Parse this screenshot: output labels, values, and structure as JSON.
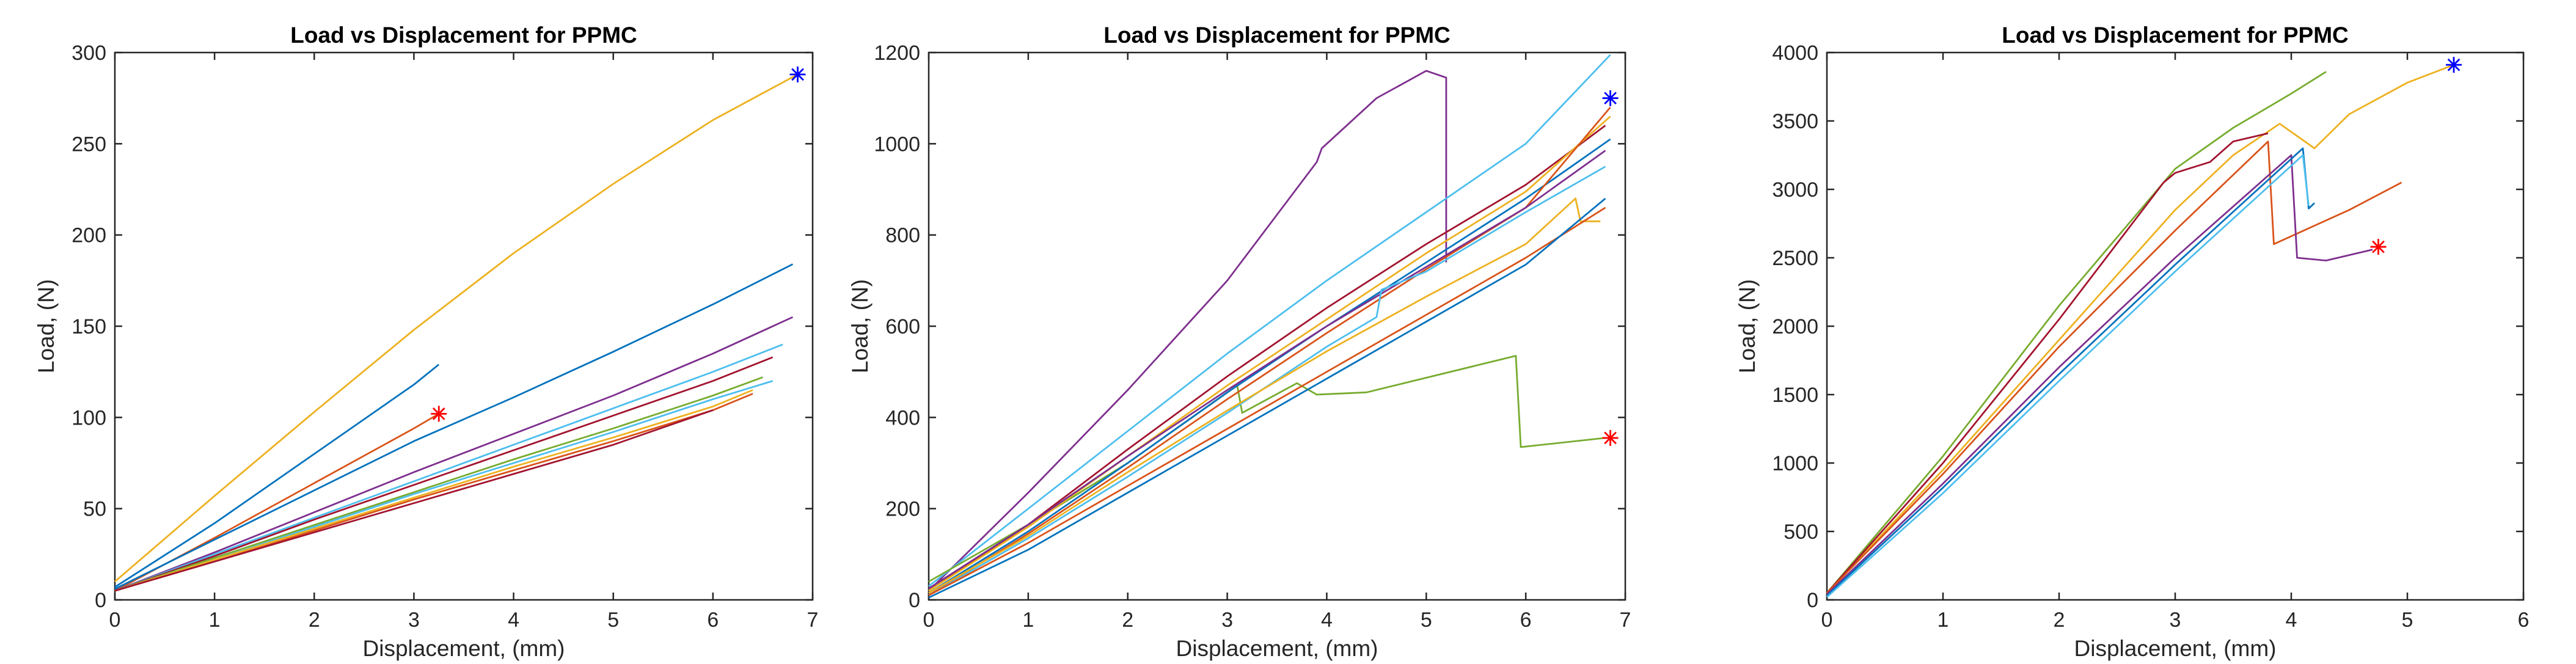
{
  "chart_data": [
    {
      "type": "line",
      "title": "Load vs Displacement for PPMC",
      "xlabel": "Displacement, (mm)",
      "ylabel": "Load, (N)",
      "xlim": [
        0,
        7
      ],
      "ylim": [
        0,
        300
      ],
      "xticks": [
        0,
        1,
        2,
        3,
        4,
        5,
        6,
        7
      ],
      "yticks": [
        0,
        50,
        100,
        150,
        200,
        250,
        300
      ],
      "grid": false,
      "markers": [
        {
          "x": 6.85,
          "y": 288,
          "color": "#0000ff"
        },
        {
          "x": 3.25,
          "y": 102,
          "color": "#ff0000"
        }
      ],
      "series": [
        {
          "color": "#EDB120",
          "x": [
            0,
            1,
            2,
            3,
            4,
            5,
            6,
            6.85
          ],
          "y": [
            10,
            57,
            103,
            148,
            190,
            228,
            263,
            288
          ]
        },
        {
          "color": "#0072BD",
          "x": [
            0,
            1,
            2,
            3,
            3.25
          ],
          "y": [
            7,
            42,
            80,
            118,
            129
          ]
        },
        {
          "color": "#D95319",
          "x": [
            0,
            1,
            2,
            3,
            3.25
          ],
          "y": [
            5,
            34,
            64,
            94,
            102
          ]
        },
        {
          "color": "#0072BD",
          "x": [
            0,
            1,
            2,
            3,
            4,
            5,
            6,
            6.8
          ],
          "y": [
            6,
            33,
            60,
            87,
            111,
            136,
            162,
            184
          ]
        },
        {
          "color": "#7E2F8E",
          "x": [
            0,
            1,
            2,
            3,
            4,
            5,
            6,
            6.8
          ],
          "y": [
            5,
            26,
            48,
            70,
            91,
            112,
            135,
            155
          ]
        },
        {
          "color": "#4DBEEE",
          "x": [
            0,
            1,
            2,
            3,
            4,
            5,
            6,
            6.7
          ],
          "y": [
            5,
            25,
            45,
            65,
            85,
            105,
            125,
            140
          ]
        },
        {
          "color": "#A2142F",
          "x": [
            0,
            1,
            2,
            3,
            4,
            5,
            6,
            6.6
          ],
          "y": [
            5,
            24,
            44,
            63,
            82,
            101,
            120,
            133
          ]
        },
        {
          "color": "#77AC30",
          "x": [
            0,
            1,
            2,
            3,
            4,
            5,
            6,
            6.5
          ],
          "y": [
            5,
            23,
            41,
            59,
            77,
            94,
            112,
            122
          ]
        },
        {
          "color": "#4DBEEE",
          "x": [
            0,
            1,
            2,
            3,
            4,
            5,
            6,
            6.6
          ],
          "y": [
            5,
            22,
            40,
            58,
            75,
            92,
            110,
            120
          ]
        },
        {
          "color": "#EDB120",
          "x": [
            0,
            1,
            2,
            3,
            4,
            5,
            6,
            6.4
          ],
          "y": [
            5,
            22,
            39,
            56,
            73,
            89,
            106,
            115
          ]
        },
        {
          "color": "#D95319",
          "x": [
            0,
            1,
            2,
            3,
            4,
            5,
            6,
            6.4
          ],
          "y": [
            5,
            21,
            38,
            55,
            71,
            87,
            104,
            113
          ]
        },
        {
          "color": "#A2142F",
          "x": [
            0,
            1,
            2,
            3,
            4,
            5,
            6
          ],
          "y": [
            5,
            21,
            37,
            53,
            69,
            85,
            104
          ]
        }
      ]
    },
    {
      "type": "line",
      "title": "Load vs Displacement for PPMC",
      "xlabel": "Displacement, (mm)",
      "ylabel": "Load, (N)",
      "xlim": [
        0,
        7
      ],
      "ylim": [
        0,
        1200
      ],
      "xticks": [
        0,
        1,
        2,
        3,
        4,
        5,
        6,
        7
      ],
      "yticks": [
        0,
        200,
        400,
        600,
        800,
        1000,
        1200
      ],
      "grid": false,
      "markers": [
        {
          "x": 6.85,
          "y": 1100,
          "color": "#0000ff"
        },
        {
          "x": 6.85,
          "y": 355,
          "color": "#ff0000"
        }
      ],
      "series": [
        {
          "color": "#7E2F8E",
          "x": [
            0,
            1,
            2,
            3,
            3.9,
            3.95,
            4.5,
            5.0,
            5.2,
            5.2
          ],
          "y": [
            20,
            235,
            460,
            700,
            960,
            990,
            1100,
            1160,
            1145,
            740
          ]
        },
        {
          "color": "#4DBEEE",
          "x": [
            0,
            1,
            2,
            3,
            4,
            5,
            6,
            6.85
          ],
          "y": [
            30,
            200,
            370,
            540,
            700,
            850,
            1000,
            1195
          ]
        },
        {
          "color": "#77AC30",
          "x": [
            0,
            1,
            2,
            3.1,
            3.15,
            3.7,
            3.9,
            4.4,
            5.9,
            5.95,
            6.8
          ],
          "y": [
            40,
            165,
            300,
            470,
            410,
            475,
            450,
            455,
            535,
            335,
            355
          ]
        },
        {
          "color": "#A2142F",
          "x": [
            0,
            1,
            2,
            3,
            4,
            5,
            6,
            6.8
          ],
          "y": [
            20,
            165,
            330,
            490,
            640,
            780,
            910,
            1040
          ]
        },
        {
          "color": "#0072BD",
          "x": [
            0,
            1,
            2,
            3,
            4,
            5,
            6,
            6.85
          ],
          "y": [
            15,
            150,
            300,
            455,
            600,
            740,
            880,
            1010
          ]
        },
        {
          "color": "#EDB120",
          "x": [
            0,
            1,
            2,
            3,
            4,
            5,
            6,
            6.85
          ],
          "y": [
            20,
            160,
            315,
            470,
            615,
            760,
            895,
            1060
          ]
        },
        {
          "color": "#D95319",
          "x": [
            0,
            1,
            2,
            3,
            4,
            5,
            6,
            6.85
          ],
          "y": [
            10,
            145,
            290,
            440,
            585,
            725,
            860,
            1080
          ]
        },
        {
          "color": "#7E2F8E",
          "x": [
            0,
            1,
            2,
            3,
            4,
            5,
            6,
            6.8
          ],
          "y": [
            25,
            165,
            315,
            460,
            600,
            730,
            860,
            985
          ]
        },
        {
          "color": "#4DBEEE",
          "x": [
            0,
            1,
            2,
            3,
            4,
            4.5,
            4.55,
            5,
            6,
            6.8
          ],
          "y": [
            10,
            135,
            270,
            410,
            555,
            620,
            680,
            720,
            850,
            950
          ]
        },
        {
          "color": "#EDB120",
          "x": [
            0,
            1,
            2,
            3,
            4,
            5,
            6,
            6.5,
            6.55,
            6.75
          ],
          "y": [
            15,
            140,
            280,
            415,
            545,
            665,
            780,
            880,
            830,
            830
          ]
        },
        {
          "color": "#D95319",
          "x": [
            0,
            1,
            2,
            3,
            4,
            5,
            6,
            6.8
          ],
          "y": [
            10,
            125,
            250,
            375,
            500,
            625,
            750,
            860
          ]
        },
        {
          "color": "#0072BD",
          "x": [
            0,
            1,
            2,
            3,
            4,
            5,
            6,
            6.8
          ],
          "y": [
            5,
            110,
            235,
            360,
            485,
            610,
            735,
            880
          ]
        }
      ]
    },
    {
      "type": "line",
      "title": "Load vs Displacement for PPMC",
      "xlabel": "Displacement, (mm)",
      "ylabel": "Load, (N)",
      "xlim": [
        0,
        6
      ],
      "ylim": [
        0,
        4000
      ],
      "xticks": [
        0,
        1,
        2,
        3,
        4,
        5,
        6
      ],
      "yticks": [
        0,
        500,
        1000,
        1500,
        2000,
        2500,
        3000,
        3500,
        4000
      ],
      "grid": false,
      "markers": [
        {
          "x": 5.4,
          "y": 3910,
          "color": "#0000ff"
        },
        {
          "x": 4.75,
          "y": 2580,
          "color": "#ff0000"
        }
      ],
      "series": [
        {
          "color": "#EDB120",
          "x": [
            0,
            1,
            2,
            3,
            3.5,
            3.9,
            4.2,
            4.5,
            5.0,
            5.4
          ],
          "y": [
            50,
            950,
            1900,
            2850,
            3250,
            3480,
            3300,
            3550,
            3780,
            3910
          ]
        },
        {
          "color": "#77AC30",
          "x": [
            0,
            1,
            2,
            3,
            3.5,
            4,
            4.3
          ],
          "y": [
            50,
            1050,
            2150,
            3150,
            3450,
            3700,
            3860
          ]
        },
        {
          "color": "#A2142F",
          "x": [
            0,
            1,
            2,
            2.9,
            3.0,
            3.3,
            3.5,
            3.8
          ],
          "y": [
            50,
            1000,
            2050,
            3050,
            3120,
            3200,
            3350,
            3410
          ]
        },
        {
          "color": "#D95319",
          "x": [
            0,
            1,
            2,
            3,
            3.8,
            3.85,
            4.5,
            4.95
          ],
          "y": [
            50,
            920,
            1850,
            2700,
            3350,
            2600,
            2850,
            3050
          ]
        },
        {
          "color": "#7E2F8E",
          "x": [
            0,
            1,
            2,
            3,
            4.0,
            4.05,
            4.3,
            4.7
          ],
          "y": [
            40,
            850,
            1700,
            2500,
            3250,
            2500,
            2480,
            2560
          ]
        },
        {
          "color": "#0072BD",
          "x": [
            0,
            1,
            2,
            3,
            4.1,
            4.15,
            4.2
          ],
          "y": [
            30,
            820,
            1650,
            2450,
            3300,
            2860,
            2900
          ]
        },
        {
          "color": "#4DBEEE",
          "x": [
            0,
            1,
            2,
            3,
            4.1,
            4.15
          ],
          "y": [
            20,
            780,
            1600,
            2400,
            3250,
            2880
          ]
        }
      ]
    }
  ]
}
